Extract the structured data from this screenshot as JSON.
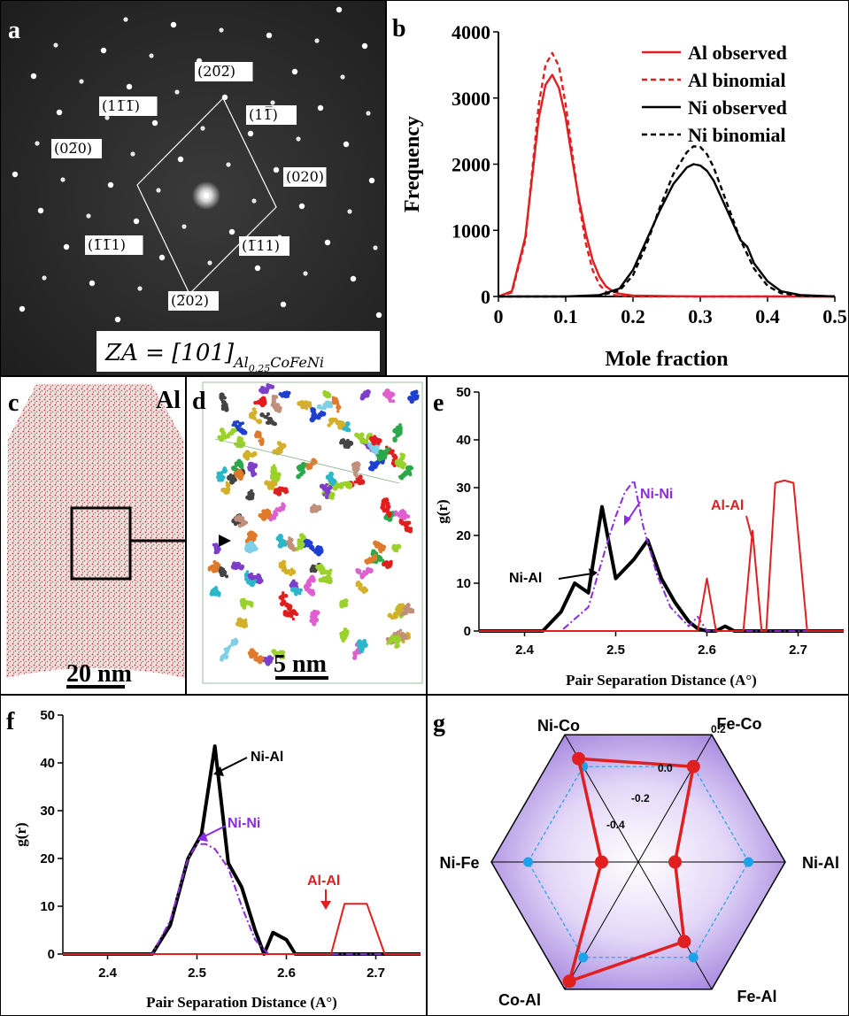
{
  "panel_a": {
    "label": "a",
    "zone_axis_main": "ZA = [101]",
    "zone_axis_sub": "Al",
    "zone_axis_sub2": "0.25",
    "zone_axis_sub3": "CoFeNi",
    "spots": [
      {
        "text": "(20̅2̅)",
        "name": "spot-20-2"
      },
      {
        "text": "(11̅1̅)",
        "name": "spot-1-1-1"
      },
      {
        "text": "(11̅̅)",
        "name": "spot-11-1"
      },
      {
        "text": "(02̅0)",
        "name": "spot-0-20"
      },
      {
        "text": "(020)",
        "name": "spot-020"
      },
      {
        "text": "(1̅1̅1)",
        "name": "spot--1-11"
      },
      {
        "text": "(1̅11)",
        "name": "spot--111"
      },
      {
        "text": "(2̅02)",
        "name": "spot--202"
      }
    ]
  },
  "panel_b": {
    "label": "b",
    "chart_data": {
      "type": "line",
      "xlabel": "Mole fraction",
      "ylabel": "Frequency",
      "xlim": [
        0,
        0.5
      ],
      "ylim": [
        0,
        4000
      ],
      "xticks": [
        "0",
        "0.1",
        "0.2",
        "0.3",
        "0.4",
        "0.5"
      ],
      "yticks": [
        "0",
        "1000",
        "2000",
        "3000",
        "4000"
      ],
      "series": [
        {
          "name": "Al observed",
          "color": "#e02020",
          "dash": false,
          "x": [
            0,
            0.02,
            0.04,
            0.06,
            0.07,
            0.08,
            0.09,
            0.1,
            0.11,
            0.12,
            0.13,
            0.14,
            0.15,
            0.16,
            0.17,
            0.18,
            0.2,
            0.25,
            0.3,
            0.4,
            0.5
          ],
          "y": [
            0,
            80,
            900,
            2700,
            3200,
            3350,
            3150,
            2700,
            2050,
            1450,
            950,
            550,
            300,
            150,
            80,
            40,
            15,
            5,
            0,
            0,
            0
          ]
        },
        {
          "name": "Al binomial",
          "color": "#e02020",
          "dash": true,
          "x": [
            0,
            0.02,
            0.04,
            0.06,
            0.07,
            0.08,
            0.09,
            0.1,
            0.11,
            0.12,
            0.13,
            0.14,
            0.15,
            0.16,
            0.17,
            0.18,
            0.2,
            0.25,
            0.3,
            0.4,
            0.5
          ],
          "y": [
            0,
            60,
            850,
            2900,
            3500,
            3680,
            3480,
            2900,
            2150,
            1400,
            800,
            400,
            180,
            70,
            25,
            10,
            0,
            0,
            0,
            0,
            0
          ]
        },
        {
          "name": "Ni observed",
          "color": "#000000",
          "dash": false,
          "x": [
            0,
            0.1,
            0.15,
            0.18,
            0.2,
            0.22,
            0.24,
            0.26,
            0.28,
            0.29,
            0.3,
            0.31,
            0.32,
            0.34,
            0.36,
            0.37,
            0.38,
            0.4,
            0.42,
            0.45,
            0.5
          ],
          "y": [
            0,
            0,
            20,
            120,
            400,
            850,
            1300,
            1700,
            1950,
            2000,
            1980,
            1900,
            1750,
            1300,
            850,
            750,
            500,
            230,
            80,
            20,
            0
          ]
        },
        {
          "name": "Ni binomial",
          "color": "#000000",
          "dash": true,
          "x": [
            0,
            0.1,
            0.15,
            0.18,
            0.2,
            0.22,
            0.24,
            0.26,
            0.28,
            0.29,
            0.3,
            0.31,
            0.32,
            0.34,
            0.36,
            0.38,
            0.4,
            0.42,
            0.45,
            0.5
          ],
          "y": [
            0,
            0,
            10,
            90,
            320,
            780,
            1350,
            1850,
            2180,
            2270,
            2260,
            2150,
            1950,
            1400,
            850,
            420,
            160,
            50,
            10,
            0
          ]
        }
      ],
      "legend": "top-right"
    }
  },
  "panel_c": {
    "label": "c",
    "element": "Al",
    "scale": "20 nm"
  },
  "panel_d": {
    "label": "d",
    "scale": "5 nm"
  },
  "panel_e": {
    "label": "e",
    "chart_data": {
      "type": "line",
      "xlabel": "Pair Separation Distance (A°)",
      "ylabel": "g(r)",
      "xlim": [
        2.35,
        2.75
      ],
      "ylim": [
        0,
        50
      ],
      "xticks": [
        "2.4",
        "2.5",
        "2.6",
        "2.7"
      ],
      "yticks": [
        "0",
        "10",
        "20",
        "30",
        "40",
        "50"
      ],
      "series": [
        {
          "name": "Ni-Al",
          "color": "#000000",
          "dash": "solid",
          "x": [
            2.35,
            2.42,
            2.44,
            2.455,
            2.47,
            2.485,
            2.5,
            2.52,
            2.535,
            2.55,
            2.565,
            2.58,
            2.59,
            2.6,
            2.61,
            2.62,
            2.63,
            2.64,
            2.75
          ],
          "y": [
            0,
            0,
            4,
            10,
            8,
            26,
            11,
            15,
            19,
            11,
            6,
            2,
            0.5,
            0,
            0,
            1,
            0,
            0,
            0
          ]
        },
        {
          "name": "Ni-Ni",
          "color": "#8a2be2",
          "dash": "dashdot",
          "x": [
            2.35,
            2.44,
            2.47,
            2.49,
            2.5,
            2.51,
            2.52,
            2.53,
            2.545,
            2.56,
            2.58,
            2.59,
            2.6,
            2.75
          ],
          "y": [
            0,
            0,
            5,
            18,
            24,
            29,
            31.5,
            22,
            12,
            5,
            1,
            3,
            0,
            0
          ]
        },
        {
          "name": "Al-Al",
          "color": "#e02020",
          "dash": "solid",
          "x": [
            2.35,
            2.59,
            2.6,
            2.61,
            2.64,
            2.65,
            2.66,
            2.665,
            2.675,
            2.685,
            2.695,
            2.71,
            2.75
          ],
          "y": [
            0,
            0,
            11,
            0,
            0,
            21,
            0,
            0,
            31,
            31.5,
            31,
            0,
            0
          ]
        }
      ],
      "annotations": [
        "Ni-Al",
        "Ni-Ni",
        "Al-Al"
      ]
    }
  },
  "panel_f": {
    "label": "f",
    "chart_data": {
      "type": "line",
      "xlabel": "Pair Separation Distance (A°)",
      "ylabel": "g(r)",
      "xlim": [
        2.35,
        2.75
      ],
      "ylim": [
        0,
        50
      ],
      "xticks": [
        "2.4",
        "2.5",
        "2.6",
        "2.7"
      ],
      "yticks": [
        "0",
        "10",
        "20",
        "30",
        "40",
        "50"
      ],
      "series": [
        {
          "name": "Ni-Al",
          "color": "#000000",
          "dash": "solid",
          "x": [
            2.35,
            2.45,
            2.47,
            2.49,
            2.505,
            2.52,
            2.535,
            2.55,
            2.565,
            2.575,
            2.585,
            2.6,
            2.61,
            2.75
          ],
          "y": [
            0,
            0,
            6,
            20,
            25,
            43.5,
            19,
            14,
            5,
            0,
            4.5,
            3,
            0,
            0
          ]
        },
        {
          "name": "Ni-Ni",
          "color": "#8a2be2",
          "dash": "dashdot",
          "x": [
            2.35,
            2.45,
            2.47,
            2.49,
            2.5,
            2.51,
            2.52,
            2.535,
            2.55,
            2.565,
            2.58,
            2.75
          ],
          "y": [
            0,
            0,
            7,
            20,
            23,
            23,
            22,
            18,
            10,
            3,
            0,
            0
          ]
        },
        {
          "name": "Al-Al",
          "color": "#e02020",
          "dash": "solid",
          "x": [
            2.35,
            2.65,
            2.665,
            2.69,
            2.71,
            2.75
          ],
          "y": [
            0,
            0,
            10.5,
            10.5,
            0,
            0
          ]
        }
      ],
      "annotations": [
        "Ni-Al",
        "Ni-Ni",
        "Al-Al"
      ]
    }
  },
  "panel_g": {
    "label": "g",
    "vertices": [
      "Ni-Co",
      "Fe-Co",
      "Ni-Al",
      "Fe-Al",
      "Co-Al",
      "Ni-Fe"
    ],
    "ring_labels": [
      "0.2",
      "0.0",
      "-0.2",
      "-0.4"
    ],
    "values": [
      0.05,
      0.0,
      -0.4,
      -0.1,
      0.15,
      -0.4
    ],
    "colors": {
      "polygon": "#e02020",
      "reference": "#1aa3e8",
      "fill": "#b99ae8"
    }
  }
}
